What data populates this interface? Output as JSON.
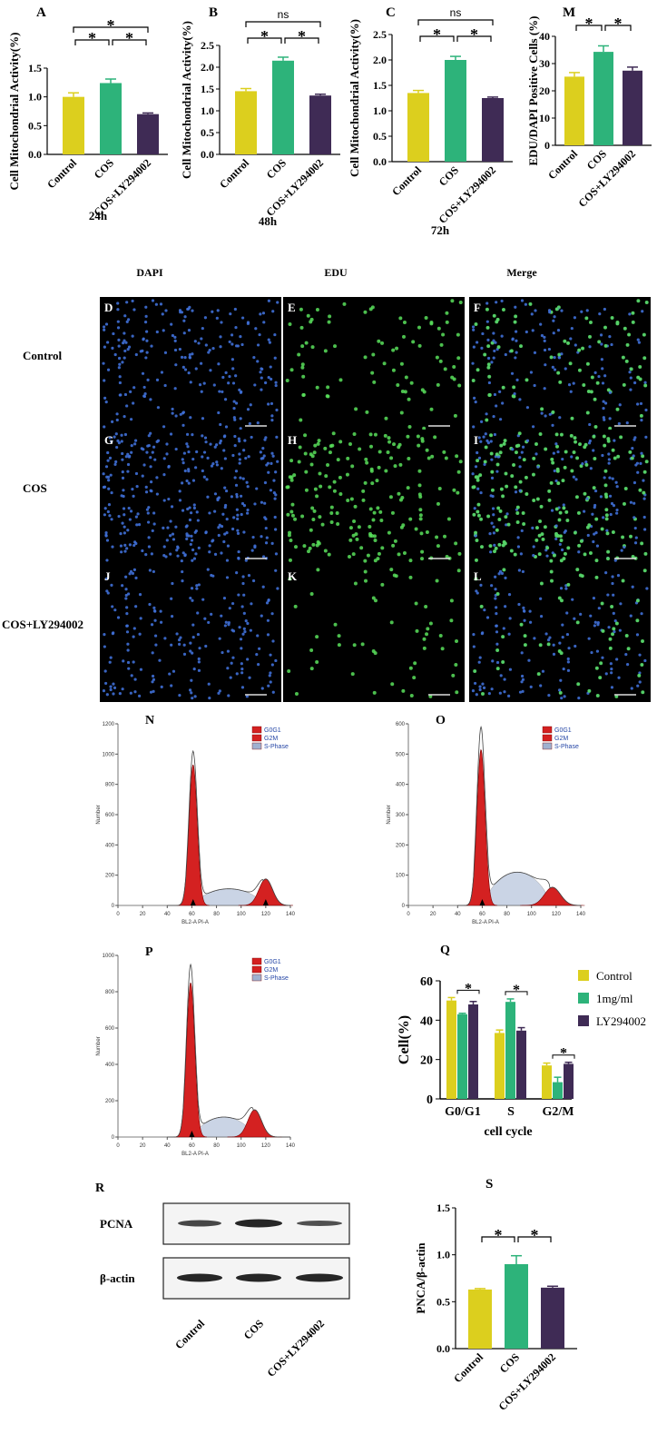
{
  "colors": {
    "control": "#dccf1e",
    "cos": "#2db37a",
    "ly": "#3f2b55",
    "g0g1": "#d42121",
    "spill": "#9fb1d0",
    "dapi": "#3f6fd6",
    "edu": "#59e05c"
  },
  "sig": {
    "star": "*",
    "ns": "ns"
  },
  "bar_panels": [
    {
      "id": "A",
      "letter": "A",
      "ylabel": "Cell Mitochondrial Activity(%)",
      "time": "24h",
      "categories": [
        "Control",
        "COS",
        "COS+LY294002"
      ],
      "ticks": [
        "0.0",
        "0.5",
        "1.0",
        "1.5"
      ],
      "ymax": 1.5,
      "values": [
        1.0,
        1.24,
        0.7
      ],
      "errors": [
        0.07,
        0.07,
        0.02
      ],
      "brackets": [
        {
          "a": 0,
          "b": 1,
          "t": "*"
        },
        {
          "a": 1,
          "b": 2,
          "t": "*"
        },
        {
          "a": 0,
          "b": 2,
          "t": "*"
        }
      ]
    },
    {
      "id": "B",
      "letter": "B",
      "ylabel": "Cell Mitochondrial Activity(%)",
      "time": "48h",
      "categories": [
        "Control",
        "COS",
        "COS+LY294002"
      ],
      "ticks": [
        "0.0",
        "0.5",
        "1.0",
        "1.5",
        "2.0",
        "2.5"
      ],
      "ymax": 2.5,
      "values": [
        1.45,
        2.15,
        1.35
      ],
      "errors": [
        0.06,
        0.08,
        0.03
      ],
      "brackets": [
        {
          "a": 0,
          "b": 1,
          "t": "*"
        },
        {
          "a": 1,
          "b": 2,
          "t": "*"
        },
        {
          "a": 0,
          "b": 2,
          "t": "ns"
        }
      ]
    },
    {
      "id": "C",
      "letter": "C",
      "ylabel": "Cell Mitochondrial Activity(%)",
      "time": "72h",
      "categories": [
        "Control",
        "COS",
        "COS+LY294002"
      ],
      "ticks": [
        "0.0",
        "0.5",
        "1.0",
        "1.5",
        "2.0",
        "2.5"
      ],
      "ymax": 2.5,
      "values": [
        1.35,
        2.0,
        1.25
      ],
      "errors": [
        0.05,
        0.07,
        0.02
      ],
      "brackets": [
        {
          "a": 0,
          "b": 1,
          "t": "*"
        },
        {
          "a": 1,
          "b": 2,
          "t": "*"
        },
        {
          "a": 0,
          "b": 2,
          "t": "ns"
        }
      ]
    },
    {
      "id": "M",
      "letter": "M",
      "ylabel": "EDU/DAPI Positive Cells (%)",
      "time": "",
      "categories": [
        "Control",
        "COS",
        "COS+LY294002"
      ],
      "ticks": [
        "0",
        "10",
        "20",
        "30",
        "40"
      ],
      "ymax": 40,
      "values": [
        25.2,
        34.3,
        27.4
      ],
      "errors": [
        1.5,
        2.2,
        1.3
      ],
      "brackets": [
        {
          "a": 0,
          "b": 1,
          "t": "*"
        },
        {
          "a": 1,
          "b": 2,
          "t": "*"
        }
      ]
    }
  ],
  "micro": {
    "columns": [
      "DAPI",
      "EDU",
      "Merge"
    ],
    "rows": [
      "Control",
      "COS",
      "COS+LY294002"
    ],
    "letters": [
      [
        "D",
        "E",
        "F"
      ],
      [
        "G",
        "H",
        "I"
      ],
      [
        "J",
        "K",
        "L"
      ]
    ]
  },
  "flow": {
    "ylabel": "Number",
    "xlabel": "BL2-A PI-A",
    "legend": [
      "G0G1",
      "G2M",
      "S-Phase"
    ],
    "xticks": [
      "0",
      "20",
      "40",
      "60",
      "80",
      "100",
      "120",
      "140"
    ],
    "panels": [
      {
        "letter": "N",
        "yticks": [
          "0",
          "200",
          "400",
          "600",
          "800",
          "1000",
          "1200"
        ],
        "ymax": 1200,
        "g1": {
          "mu": 61,
          "sd": 3.3,
          "h": 930
        },
        "g2": {
          "mu": 120,
          "sd": 5.5,
          "h": 175
        },
        "s": {
          "from": 62,
          "to": 118,
          "h": 110
        },
        "outline_peak": 1020,
        "arrows": [
          61,
          120
        ]
      },
      {
        "letter": "O",
        "yticks": [
          "0",
          "100",
          "200",
          "300",
          "400",
          "500",
          "600"
        ],
        "ymax": 600,
        "g1": {
          "mu": 59,
          "sd": 3.3,
          "h": 515
        },
        "g2": {
          "mu": 117,
          "sd": 6.5,
          "h": 60
        },
        "s": {
          "from": 62,
          "to": 115,
          "h": 110
        },
        "outline_peak": 590,
        "arrows": [
          60
        ]
      },
      {
        "letter": "P",
        "yticks": [
          "0",
          "200",
          "400",
          "600",
          "800",
          "1000"
        ],
        "ymax": 1000,
        "g1": {
          "mu": 59,
          "sd": 3.3,
          "h": 850
        },
        "g2": {
          "mu": 111,
          "sd": 5.5,
          "h": 150
        },
        "s": {
          "from": 62,
          "to": 110,
          "h": 110
        },
        "outline_peak": 950,
        "arrows": [
          60
        ]
      }
    ]
  },
  "chart_data": [
    {
      "type": "bar",
      "panel": "Q",
      "ylabel": "Cell(%)",
      "xlabel": "cell cycle",
      "categories": [
        "G0/G1",
        "S",
        "G2/M"
      ],
      "ylim": [
        0,
        60
      ],
      "ticks": [
        "0",
        "20",
        "40",
        "60"
      ],
      "legend": [
        "Control",
        "1mg/ml",
        "LY294002"
      ],
      "series": [
        {
          "name": "Control",
          "values": [
            50,
            33.5,
            17
          ],
          "errors": [
            1.5,
            1.5,
            1.2
          ]
        },
        {
          "name": "1mg/ml",
          "values": [
            43,
            49.3,
            8.5
          ],
          "errors": [
            0.5,
            1.5,
            2.5
          ]
        },
        {
          "name": "LY294002",
          "values": [
            48,
            34.7,
            17.8
          ],
          "errors": [
            1.5,
            1.5,
            0.8
          ]
        }
      ],
      "sig": [
        "*",
        "*",
        "*"
      ]
    },
    {
      "type": "bar",
      "panel": "S",
      "ylabel": "PNCA/β-actin",
      "categories": [
        "Control",
        "COS",
        "COS+LY294002"
      ],
      "ylim": [
        0,
        1.5
      ],
      "ticks": [
        "0.0",
        "0.5",
        "1.0",
        "1.5"
      ],
      "values": [
        0.63,
        0.9,
        0.65
      ],
      "errors": [
        0.01,
        0.09,
        0.015
      ],
      "sig": [
        "*",
        "*"
      ]
    }
  ],
  "western": {
    "letter": "R",
    "bands": [
      "PCNA",
      "β-actin"
    ],
    "lanes": [
      "Control",
      "COS",
      "COS+LY294002"
    ]
  },
  "panel_letters": {
    "Q": "Q",
    "S": "S"
  }
}
